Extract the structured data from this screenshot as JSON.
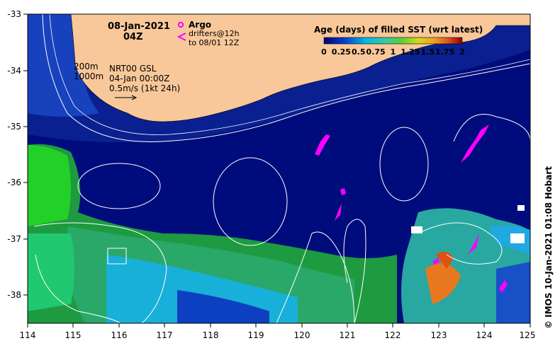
{
  "header": {
    "date": "08-Jan-2021",
    "time": "04Z"
  },
  "legend_drifters": {
    "argo": "Argo",
    "drifters": "drifters@12h",
    "drifters_to": "to 08/01 12Z"
  },
  "isobaths": {
    "a": "200m",
    "b": "1000m"
  },
  "altimetry": {
    "product": "NRT00 GSL",
    "date": "04-Jan 00:00Z",
    "scale": "0.5m/s (1kt 24h)"
  },
  "colorbar": {
    "title": "Age (days) of filled SST (wrt latest)",
    "ticks": [
      "0",
      "0.25",
      "0.5",
      "0.75",
      "1",
      "1.25",
      "1.5",
      "1.75",
      "2"
    ],
    "range": [
      0,
      2
    ]
  },
  "credit": "© IMOS 10-Jan-2021 01:08 Hobart",
  "colors": {
    "land": "#f8c89a",
    "ocean_deep": "#000c7c",
    "shelf": "#0a2cb0",
    "cyan": "#18b8e8",
    "green": "#20c830",
    "teal": "#30b888",
    "orange": "#e87820",
    "argo": "#ff00ff"
  },
  "chart_data": {
    "type": "heatmap",
    "xlim": [
      114,
      125
    ],
    "ylim": [
      -38.5,
      -33
    ],
    "xticks": [
      "114",
      "115",
      "116",
      "117",
      "118",
      "119",
      "120",
      "121",
      "122",
      "123",
      "124",
      "125"
    ],
    "yticks": [
      "-33",
      "-34",
      "-35",
      "-36",
      "-37",
      "-38"
    ]
  }
}
